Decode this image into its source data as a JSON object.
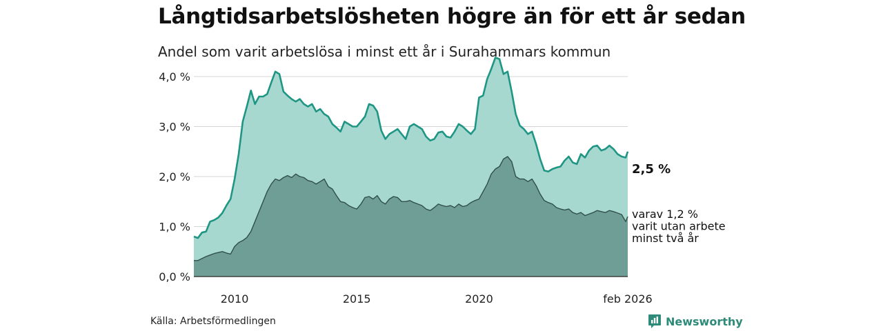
{
  "header": {
    "title": "Långtidsarbetslösheten högre än för ett år sedan",
    "subtitle": "Andel som varit arbetslösa i minst ett år i Surahammars kommun"
  },
  "footer": {
    "source": "Källa: Arbetsförmedlingen",
    "brand": "Newsworthy"
  },
  "colors": {
    "total_line": "#1f9584",
    "total_fill": "#a6d8d0",
    "sub_line": "#2f4f49",
    "sub_fill": "#6f9e96",
    "grid": "#d4d4d4",
    "brand": "#2e8b7a"
  },
  "chart_data": {
    "type": "area",
    "x_start": "2008-05",
    "x_end": "2026-02",
    "xticks": [
      {
        "x": "2010-01",
        "label": "2010"
      },
      {
        "x": "2015-01",
        "label": "2015"
      },
      {
        "x": "2020-01",
        "label": "2020"
      },
      {
        "x": "2026-02",
        "label": "feb 2026"
      }
    ],
    "yticks": [
      {
        "value": 0,
        "label": "0,0 %"
      },
      {
        "value": 1,
        "label": "1,0 %"
      },
      {
        "value": 2,
        "label": "2,0 %"
      },
      {
        "value": 3,
        "label": "3,0 %"
      },
      {
        "value": 4,
        "label": "4,0 %"
      }
    ],
    "ylim": [
      0,
      4.4
    ],
    "grid": true,
    "series": [
      {
        "key": "total",
        "end_label": "2,5 %",
        "points": [
          [
            "2008-05",
            0.8
          ],
          [
            "2008-07",
            0.77
          ],
          [
            "2008-09",
            0.88
          ],
          [
            "2008-11",
            0.9
          ],
          [
            "2009-01",
            1.1
          ],
          [
            "2009-03",
            1.13
          ],
          [
            "2009-05",
            1.18
          ],
          [
            "2009-07",
            1.27
          ],
          [
            "2009-09",
            1.42
          ],
          [
            "2009-11",
            1.55
          ],
          [
            "2010-01",
            1.95
          ],
          [
            "2010-03",
            2.45
          ],
          [
            "2010-05",
            3.1
          ],
          [
            "2010-07",
            3.4
          ],
          [
            "2010-09",
            3.72
          ],
          [
            "2010-11",
            3.45
          ],
          [
            "2011-01",
            3.6
          ],
          [
            "2011-03",
            3.6
          ],
          [
            "2011-05",
            3.65
          ],
          [
            "2011-07",
            3.88
          ],
          [
            "2011-09",
            4.1
          ],
          [
            "2011-11",
            4.05
          ],
          [
            "2012-01",
            3.7
          ],
          [
            "2012-03",
            3.62
          ],
          [
            "2012-05",
            3.55
          ],
          [
            "2012-07",
            3.5
          ],
          [
            "2012-09",
            3.55
          ],
          [
            "2012-11",
            3.45
          ],
          [
            "2013-01",
            3.4
          ],
          [
            "2013-03",
            3.45
          ],
          [
            "2013-05",
            3.3
          ],
          [
            "2013-07",
            3.35
          ],
          [
            "2013-09",
            3.25
          ],
          [
            "2013-11",
            3.2
          ],
          [
            "2014-01",
            3.05
          ],
          [
            "2014-03",
            2.98
          ],
          [
            "2014-05",
            2.9
          ],
          [
            "2014-07",
            3.1
          ],
          [
            "2014-09",
            3.05
          ],
          [
            "2014-11",
            3.0
          ],
          [
            "2015-01",
            3.0
          ],
          [
            "2015-03",
            3.1
          ],
          [
            "2015-05",
            3.2
          ],
          [
            "2015-07",
            3.45
          ],
          [
            "2015-09",
            3.42
          ],
          [
            "2015-11",
            3.3
          ],
          [
            "2016-01",
            2.92
          ],
          [
            "2016-03",
            2.75
          ],
          [
            "2016-05",
            2.85
          ],
          [
            "2016-07",
            2.9
          ],
          [
            "2016-09",
            2.95
          ],
          [
            "2016-11",
            2.85
          ],
          [
            "2017-01",
            2.75
          ],
          [
            "2017-03",
            3.0
          ],
          [
            "2017-05",
            3.05
          ],
          [
            "2017-07",
            3.0
          ],
          [
            "2017-09",
            2.95
          ],
          [
            "2017-11",
            2.8
          ],
          [
            "2018-01",
            2.72
          ],
          [
            "2018-03",
            2.75
          ],
          [
            "2018-05",
            2.88
          ],
          [
            "2018-07",
            2.9
          ],
          [
            "2018-09",
            2.8
          ],
          [
            "2018-11",
            2.78
          ],
          [
            "2019-01",
            2.9
          ],
          [
            "2019-03",
            3.05
          ],
          [
            "2019-05",
            3.0
          ],
          [
            "2019-07",
            2.92
          ],
          [
            "2019-09",
            2.85
          ],
          [
            "2019-11",
            2.95
          ],
          [
            "2020-01",
            3.58
          ],
          [
            "2020-03",
            3.62
          ],
          [
            "2020-05",
            3.95
          ],
          [
            "2020-07",
            4.15
          ],
          [
            "2020-09",
            4.38
          ],
          [
            "2020-11",
            4.35
          ],
          [
            "2021-01",
            4.05
          ],
          [
            "2021-03",
            4.1
          ],
          [
            "2021-05",
            3.7
          ],
          [
            "2021-07",
            3.25
          ],
          [
            "2021-09",
            3.02
          ],
          [
            "2021-11",
            2.95
          ],
          [
            "2022-01",
            2.85
          ],
          [
            "2022-03",
            2.9
          ],
          [
            "2022-05",
            2.65
          ],
          [
            "2022-07",
            2.35
          ],
          [
            "2022-09",
            2.12
          ],
          [
            "2022-11",
            2.1
          ],
          [
            "2023-01",
            2.15
          ],
          [
            "2023-03",
            2.18
          ],
          [
            "2023-05",
            2.2
          ],
          [
            "2023-07",
            2.32
          ],
          [
            "2023-09",
            2.4
          ],
          [
            "2023-11",
            2.28
          ],
          [
            "2024-01",
            2.25
          ],
          [
            "2024-03",
            2.45
          ],
          [
            "2024-05",
            2.38
          ],
          [
            "2024-07",
            2.52
          ],
          [
            "2024-09",
            2.6
          ],
          [
            "2024-11",
            2.62
          ],
          [
            "2025-01",
            2.52
          ],
          [
            "2025-03",
            2.55
          ],
          [
            "2025-05",
            2.62
          ],
          [
            "2025-07",
            2.55
          ],
          [
            "2025-09",
            2.45
          ],
          [
            "2025-11",
            2.4
          ],
          [
            "2026-01",
            2.38
          ],
          [
            "2026-02",
            2.5
          ]
        ]
      },
      {
        "key": "sub",
        "end_label_lines": [
          "varav 1,2 %",
          "varit utan arbete",
          "minst två år"
        ],
        "points": [
          [
            "2008-05",
            0.32
          ],
          [
            "2008-07",
            0.32
          ],
          [
            "2008-09",
            0.36
          ],
          [
            "2008-11",
            0.4
          ],
          [
            "2009-01",
            0.43
          ],
          [
            "2009-03",
            0.46
          ],
          [
            "2009-05",
            0.48
          ],
          [
            "2009-07",
            0.5
          ],
          [
            "2009-09",
            0.47
          ],
          [
            "2009-11",
            0.45
          ],
          [
            "2010-01",
            0.6
          ],
          [
            "2010-03",
            0.68
          ],
          [
            "2010-05",
            0.72
          ],
          [
            "2010-07",
            0.78
          ],
          [
            "2010-09",
            0.9
          ],
          [
            "2010-11",
            1.1
          ],
          [
            "2011-01",
            1.3
          ],
          [
            "2011-03",
            1.5
          ],
          [
            "2011-05",
            1.7
          ],
          [
            "2011-07",
            1.85
          ],
          [
            "2011-09",
            1.95
          ],
          [
            "2011-11",
            1.92
          ],
          [
            "2012-01",
            1.98
          ],
          [
            "2012-03",
            2.02
          ],
          [
            "2012-05",
            1.98
          ],
          [
            "2012-07",
            2.05
          ],
          [
            "2012-09",
            2.0
          ],
          [
            "2012-11",
            1.98
          ],
          [
            "2013-01",
            1.92
          ],
          [
            "2013-03",
            1.9
          ],
          [
            "2013-05",
            1.85
          ],
          [
            "2013-07",
            1.9
          ],
          [
            "2013-09",
            1.95
          ],
          [
            "2013-11",
            1.8
          ],
          [
            "2014-01",
            1.75
          ],
          [
            "2014-03",
            1.62
          ],
          [
            "2014-05",
            1.5
          ],
          [
            "2014-07",
            1.48
          ],
          [
            "2014-09",
            1.42
          ],
          [
            "2014-11",
            1.38
          ],
          [
            "2015-01",
            1.35
          ],
          [
            "2015-03",
            1.45
          ],
          [
            "2015-05",
            1.58
          ],
          [
            "2015-07",
            1.6
          ],
          [
            "2015-09",
            1.55
          ],
          [
            "2015-11",
            1.62
          ],
          [
            "2016-01",
            1.5
          ],
          [
            "2016-03",
            1.45
          ],
          [
            "2016-05",
            1.55
          ],
          [
            "2016-07",
            1.6
          ],
          [
            "2016-09",
            1.58
          ],
          [
            "2016-11",
            1.5
          ],
          [
            "2017-01",
            1.5
          ],
          [
            "2017-03",
            1.52
          ],
          [
            "2017-05",
            1.48
          ],
          [
            "2017-07",
            1.45
          ],
          [
            "2017-09",
            1.42
          ],
          [
            "2017-11",
            1.35
          ],
          [
            "2018-01",
            1.32
          ],
          [
            "2018-03",
            1.38
          ],
          [
            "2018-05",
            1.45
          ],
          [
            "2018-07",
            1.42
          ],
          [
            "2018-09",
            1.4
          ],
          [
            "2018-11",
            1.42
          ],
          [
            "2019-01",
            1.38
          ],
          [
            "2019-03",
            1.45
          ],
          [
            "2019-05",
            1.4
          ],
          [
            "2019-07",
            1.42
          ],
          [
            "2019-09",
            1.48
          ],
          [
            "2019-11",
            1.52
          ],
          [
            "2020-01",
            1.55
          ],
          [
            "2020-03",
            1.7
          ],
          [
            "2020-05",
            1.85
          ],
          [
            "2020-07",
            2.05
          ],
          [
            "2020-09",
            2.15
          ],
          [
            "2020-11",
            2.2
          ],
          [
            "2021-01",
            2.35
          ],
          [
            "2021-03",
            2.4
          ],
          [
            "2021-05",
            2.3
          ],
          [
            "2021-07",
            2.0
          ],
          [
            "2021-09",
            1.95
          ],
          [
            "2021-11",
            1.95
          ],
          [
            "2022-01",
            1.9
          ],
          [
            "2022-03",
            1.95
          ],
          [
            "2022-05",
            1.82
          ],
          [
            "2022-07",
            1.65
          ],
          [
            "2022-09",
            1.52
          ],
          [
            "2022-11",
            1.48
          ],
          [
            "2023-01",
            1.45
          ],
          [
            "2023-03",
            1.38
          ],
          [
            "2023-05",
            1.35
          ],
          [
            "2023-07",
            1.33
          ],
          [
            "2023-09",
            1.35
          ],
          [
            "2023-11",
            1.28
          ],
          [
            "2024-01",
            1.25
          ],
          [
            "2024-03",
            1.28
          ],
          [
            "2024-05",
            1.22
          ],
          [
            "2024-07",
            1.25
          ],
          [
            "2024-09",
            1.28
          ],
          [
            "2024-11",
            1.32
          ],
          [
            "2025-01",
            1.3
          ],
          [
            "2025-03",
            1.28
          ],
          [
            "2025-05",
            1.32
          ],
          [
            "2025-07",
            1.3
          ],
          [
            "2025-09",
            1.27
          ],
          [
            "2025-11",
            1.24
          ],
          [
            "2026-01",
            1.1
          ],
          [
            "2026-02",
            1.2
          ]
        ]
      }
    ]
  }
}
